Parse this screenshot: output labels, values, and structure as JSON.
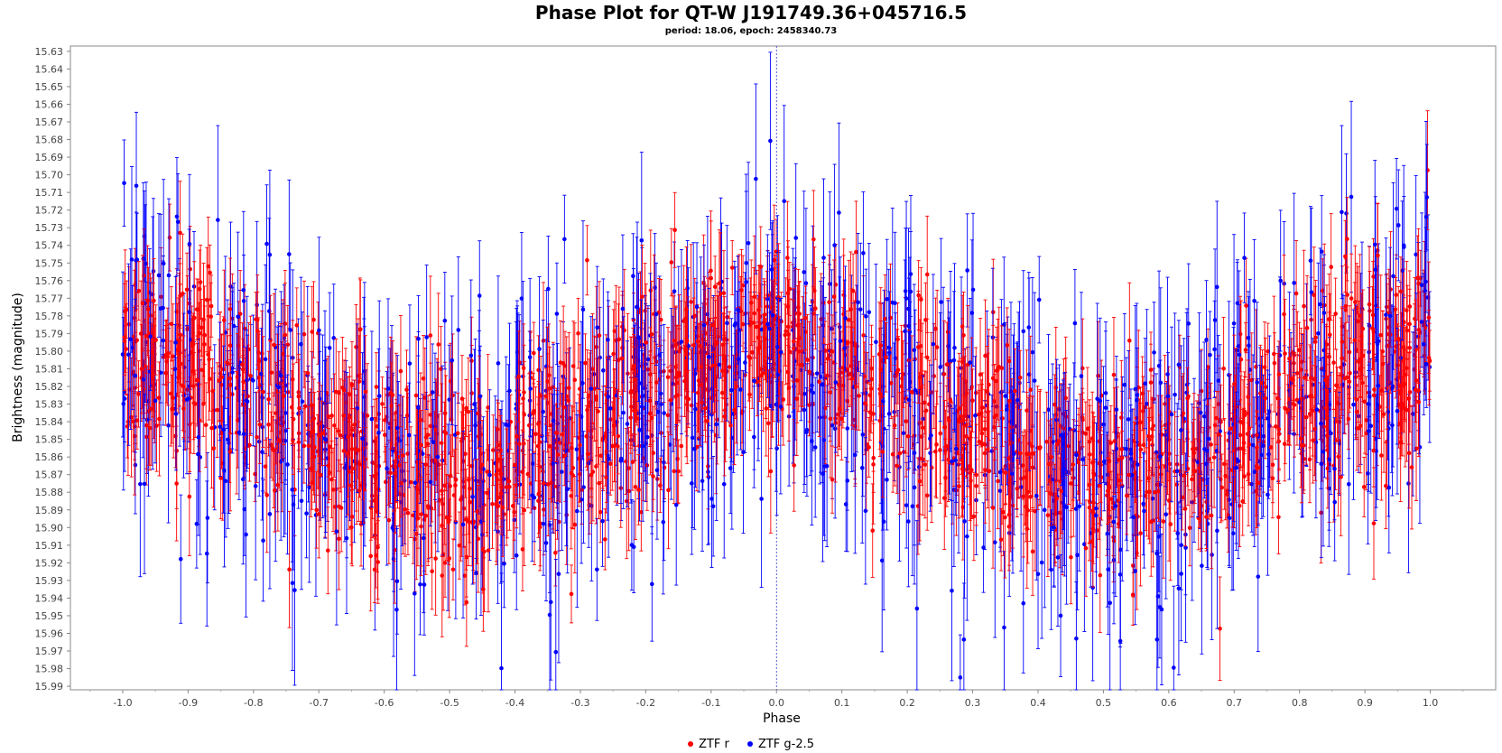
{
  "chart_data": {
    "type": "scatter",
    "title": "Phase Plot for QT-W J191749.36+045716.5",
    "subtitle": "period: 18.06, epoch: 2458340.73",
    "xlabel": "Phase",
    "ylabel": "Brightness (magnitude)",
    "xlim": [
      -1.08,
      1.1
    ],
    "ylim": [
      15.627,
      15.992
    ],
    "y_inverted": true,
    "x_ticks": [
      "-1.0",
      "-0.9",
      "-0.8",
      "-0.7",
      "-0.6",
      "-0.5",
      "-0.4",
      "-0.3",
      "-0.2",
      "-0.1",
      "0.0",
      "0.1",
      "0.2",
      "0.3",
      "0.4",
      "0.5",
      "0.6",
      "0.7",
      "0.8",
      "0.9",
      "1.0"
    ],
    "y_ticks": [
      "15.63",
      "15.64",
      "15.65",
      "15.66",
      "15.67",
      "15.68",
      "15.69",
      "15.70",
      "15.71",
      "15.72",
      "15.73",
      "15.74",
      "15.75",
      "15.76",
      "15.77",
      "15.78",
      "15.79",
      "15.80",
      "15.81",
      "15.82",
      "15.83",
      "15.84",
      "15.85",
      "15.86",
      "15.87",
      "15.88",
      "15.89",
      "15.90",
      "15.91",
      "15.92",
      "15.93",
      "15.94",
      "15.95",
      "15.96",
      "15.97",
      "15.98",
      "15.99"
    ],
    "grid": false,
    "reference_line_x": 0.0,
    "legend_position": "bottom-center",
    "series": [
      {
        "name": "ZTF r",
        "color": "#ff0000",
        "points_count": 1700,
        "mean_mag_profile": "max brightness near phase 0.0 and ±1.0, faintest near ±0.5",
        "scatter_mag": 0.04,
        "errorbar_mag": 0.025
      },
      {
        "name": "ZTF g-2.5",
        "color": "#0000ff",
        "points_count": 900,
        "mean_mag_profile": "max brightness near phase 0.0 and ±1.0, faintest near ±0.5",
        "scatter_mag": 0.06,
        "errorbar_mag": 0.04
      }
    ]
  }
}
